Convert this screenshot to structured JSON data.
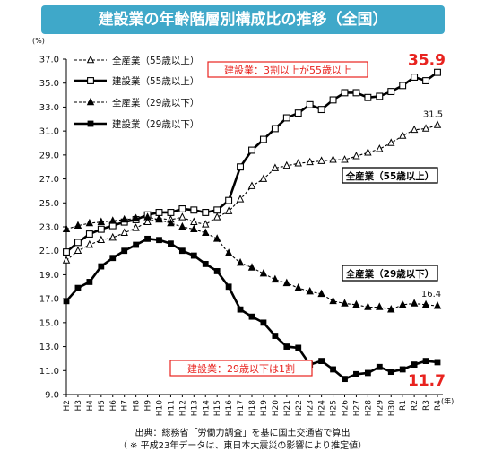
{
  "page": {
    "title": "建設業の年齢階層別構成比の推移（全国）"
  },
  "chart_data": {
    "type": "line",
    "y_unit": "(%)",
    "x_unit": "(年)",
    "ylim": [
      9.0,
      37.0
    ],
    "yticks": [
      "9.0",
      "11.0",
      "13.0",
      "15.0",
      "17.0",
      "19.0",
      "21.0",
      "23.0",
      "25.0",
      "27.0",
      "29.0",
      "31.0",
      "33.0",
      "35.0",
      "37.0"
    ],
    "categories": [
      "H2",
      "H3",
      "H4",
      "H5",
      "H6",
      "H7",
      "H8",
      "H9",
      "H10",
      "H11",
      "H12",
      "H13",
      "H14",
      "H15",
      "H16",
      "H17",
      "H18",
      "H19",
      "H20",
      "H21",
      "H22",
      "H23",
      "H24",
      "H25",
      "H26",
      "H27",
      "H28",
      "H29",
      "H30",
      "R1",
      "R2",
      "R3",
      "R4"
    ],
    "series": [
      {
        "name": "全産業（55歳以上）",
        "style": "dashed",
        "marker": "triangle-open",
        "values": [
          20.2,
          21.0,
          21.5,
          21.9,
          22.1,
          22.5,
          22.9,
          23.4,
          23.7,
          23.6,
          23.8,
          23.4,
          23.2,
          23.8,
          24.3,
          25.3,
          26.4,
          27.0,
          27.9,
          28.1,
          28.3,
          28.4,
          28.5,
          28.6,
          28.6,
          28.9,
          29.2,
          29.5,
          30.0,
          30.6,
          31.1,
          31.2,
          31.5
        ]
      },
      {
        "name": "建設業（55歳以上）",
        "style": "solid",
        "marker": "square-open",
        "values": [
          20.9,
          21.7,
          22.4,
          22.8,
          23.1,
          23.4,
          23.6,
          24.0,
          24.2,
          24.2,
          24.5,
          24.4,
          24.2,
          24.4,
          25.2,
          28.0,
          29.4,
          30.3,
          31.2,
          32.1,
          32.5,
          33.2,
          32.8,
          33.6,
          34.2,
          34.2,
          33.8,
          33.9,
          34.3,
          34.8,
          35.5,
          35.2,
          35.9
        ]
      },
      {
        "name": "全産業（29歳以下）",
        "style": "dashed",
        "marker": "triangle-filled",
        "values": [
          22.8,
          23.1,
          23.3,
          23.4,
          23.5,
          23.6,
          23.7,
          23.8,
          23.6,
          23.3,
          23.0,
          22.8,
          22.5,
          22.0,
          20.8,
          20.0,
          19.6,
          19.1,
          18.6,
          18.3,
          17.9,
          17.6,
          17.4,
          16.8,
          16.6,
          16.5,
          16.3,
          16.3,
          16.1,
          16.5,
          16.6,
          16.5,
          16.4
        ]
      },
      {
        "name": "建設業（29歳以下）",
        "style": "solid",
        "marker": "square-filled",
        "values": [
          16.8,
          17.9,
          18.4,
          19.7,
          20.4,
          21.0,
          21.5,
          22.0,
          21.9,
          21.6,
          21.0,
          20.6,
          19.9,
          19.3,
          18.0,
          16.1,
          15.5,
          15.0,
          13.9,
          13.0,
          12.9,
          11.5,
          11.8,
          11.1,
          10.3,
          10.7,
          10.8,
          11.3,
          10.9,
          11.1,
          11.5,
          11.8,
          11.7
        ]
      }
    ],
    "data_labels": {
      "construction_55_last": "35.9",
      "all_55_last": "31.5",
      "all_29_last": "16.4",
      "construction_29_last": "11.7"
    },
    "annotations": {
      "construction_55": "建設業：3割以上が55歳以上",
      "construction_29": "建設業：29歳以下は1割",
      "all_55_box": "全産業（55歳以上）",
      "all_29_box": "全産業（29歳以下）"
    },
    "legend_position": "top-left"
  },
  "footnote": {
    "line1": "出典：総務省「労働力調査」を基に国土交通省で算出",
    "line2": "（ ※ 平成23年データは、東日本大震災の影響により推定値）"
  },
  "colors": {
    "title_bg": "#3fa8c9",
    "highlight": "#e8231f",
    "line": "#000000"
  }
}
